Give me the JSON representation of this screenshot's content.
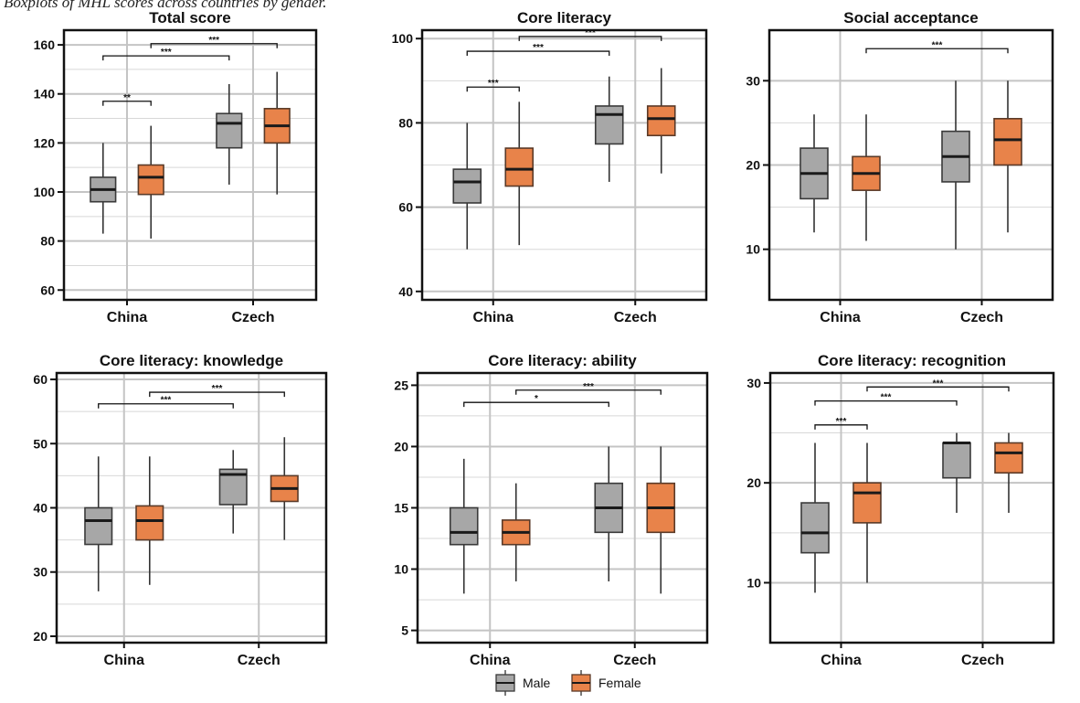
{
  "caption": "Boxplots of MHL scores across countries by gender.",
  "legend": {
    "position": "bottom-center",
    "entries": [
      {
        "name": "Male",
        "color": "#a7a7a7"
      },
      {
        "name": "Female",
        "color": "#e8834a"
      }
    ]
  },
  "chart_data": [
    {
      "type": "box",
      "title": "Total score",
      "categories": [
        "China",
        "Czech"
      ],
      "ylim": [
        56,
        166
      ],
      "yticks": [
        60,
        80,
        100,
        120,
        140,
        160
      ],
      "series": [
        {
          "name": "Male",
          "boxes": [
            {
              "min": 83,
              "q1": 96,
              "median": 101,
              "q3": 106,
              "max": 120
            },
            {
              "min": 103,
              "q1": 118,
              "median": 128,
              "q3": 132,
              "max": 144
            }
          ]
        },
        {
          "name": "Female",
          "boxes": [
            {
              "min": 81,
              "q1": 99,
              "median": 106,
              "q3": 111,
              "max": 127
            },
            {
              "min": 99,
              "q1": 120,
              "median": 127,
              "q3": 134,
              "max": 149
            }
          ]
        }
      ],
      "significance": [
        {
          "from": [
            0,
            0
          ],
          "to": [
            0,
            1
          ],
          "y": 137,
          "label": "**"
        },
        {
          "from": [
            0,
            0
          ],
          "to": [
            1,
            0
          ],
          "y": 155.5,
          "label": "***"
        },
        {
          "from": [
            0,
            1
          ],
          "to": [
            1,
            1
          ],
          "y": 160.5,
          "label": "***"
        }
      ]
    },
    {
      "type": "box",
      "title": "Core literacy",
      "categories": [
        "China",
        "Czech"
      ],
      "ylim": [
        38,
        102
      ],
      "yticks": [
        40,
        60,
        80,
        100
      ],
      "series": [
        {
          "name": "Male",
          "boxes": [
            {
              "min": 50,
              "q1": 61,
              "median": 66,
              "q3": 69,
              "max": 80
            },
            {
              "min": 66,
              "q1": 75,
              "median": 82,
              "q3": 84,
              "max": 91
            }
          ]
        },
        {
          "name": "Female",
          "boxes": [
            {
              "min": 51,
              "q1": 65,
              "median": 69,
              "q3": 74,
              "max": 85
            },
            {
              "min": 68,
              "q1": 77,
              "median": 81,
              "q3": 84,
              "max": 93
            }
          ]
        }
      ],
      "significance": [
        {
          "from": [
            0,
            0
          ],
          "to": [
            0,
            1
          ],
          "y": 88.5,
          "label": "***"
        },
        {
          "from": [
            0,
            0
          ],
          "to": [
            1,
            0
          ],
          "y": 97,
          "label": "***"
        },
        {
          "from": [
            0,
            1
          ],
          "to": [
            1,
            1
          ],
          "y": 100.5,
          "label": "***"
        }
      ]
    },
    {
      "type": "box",
      "title": "Social acceptance",
      "categories": [
        "China",
        "Czech"
      ],
      "ylim": [
        4,
        36
      ],
      "yticks": [
        10,
        20,
        30
      ],
      "series": [
        {
          "name": "Male",
          "boxes": [
            {
              "min": 12,
              "q1": 16,
              "median": 19,
              "q3": 22,
              "max": 26
            },
            {
              "min": 10,
              "q1": 18,
              "median": 21,
              "q3": 24,
              "max": 30
            }
          ]
        },
        {
          "name": "Female",
          "boxes": [
            {
              "min": 11,
              "q1": 17,
              "median": 19,
              "q3": 21,
              "max": 26
            },
            {
              "min": 12,
              "q1": 20,
              "median": 23,
              "q3": 25.5,
              "max": 30
            }
          ]
        }
      ],
      "significance": [
        {
          "from": [
            0,
            1
          ],
          "to": [
            1,
            1
          ],
          "y": 33.8,
          "label": "***"
        }
      ]
    },
    {
      "type": "box",
      "title": "Core literacy: knowledge",
      "categories": [
        "China",
        "Czech"
      ],
      "ylim": [
        19,
        61
      ],
      "yticks": [
        20,
        30,
        40,
        50,
        60
      ],
      "series": [
        {
          "name": "Male",
          "boxes": [
            {
              "min": 27,
              "q1": 34.3,
              "median": 38,
              "q3": 40,
              "max": 48
            },
            {
              "min": 36,
              "q1": 40.5,
              "median": 45.2,
              "q3": 46,
              "max": 49
            }
          ]
        },
        {
          "name": "Female",
          "boxes": [
            {
              "min": 28,
              "q1": 35,
              "median": 38,
              "q3": 40.3,
              "max": 48
            },
            {
              "min": 35,
              "q1": 41,
              "median": 43,
              "q3": 45,
              "max": 51
            }
          ]
        }
      ],
      "significance": [
        {
          "from": [
            0,
            0
          ],
          "to": [
            1,
            0
          ],
          "y": 56.2,
          "label": "***"
        },
        {
          "from": [
            0,
            1
          ],
          "to": [
            1,
            1
          ],
          "y": 58,
          "label": "***"
        }
      ]
    },
    {
      "type": "box",
      "title": "Core literacy: ability",
      "categories": [
        "China",
        "Czech"
      ],
      "ylim": [
        4,
        26
      ],
      "yticks": [
        5,
        10,
        15,
        20,
        25
      ],
      "series": [
        {
          "name": "Male",
          "boxes": [
            {
              "min": 8,
              "q1": 12,
              "median": 13,
              "q3": 15,
              "max": 19
            },
            {
              "min": 9,
              "q1": 13,
              "median": 15,
              "q3": 17,
              "max": 20
            }
          ]
        },
        {
          "name": "Female",
          "boxes": [
            {
              "min": 9,
              "q1": 12,
              "median": 13,
              "q3": 14,
              "max": 17
            },
            {
              "min": 8,
              "q1": 13,
              "median": 15,
              "q3": 17,
              "max": 20
            }
          ]
        }
      ],
      "significance": [
        {
          "from": [
            0,
            0
          ],
          "to": [
            1,
            0
          ],
          "y": 23.6,
          "label": "*"
        },
        {
          "from": [
            0,
            1
          ],
          "to": [
            1,
            1
          ],
          "y": 24.6,
          "label": "***"
        }
      ]
    },
    {
      "type": "box",
      "title": "Core literacy: recognition",
      "categories": [
        "China",
        "Czech"
      ],
      "ylim": [
        4,
        31
      ],
      "yticks": [
        10,
        20,
        30
      ],
      "series": [
        {
          "name": "Male",
          "boxes": [
            {
              "min": 9,
              "q1": 13,
              "median": 15,
              "q3": 18,
              "max": 24
            },
            {
              "min": 17,
              "q1": 20.5,
              "median": 24,
              "q3": 24,
              "max": 25
            }
          ]
        },
        {
          "name": "Female",
          "boxes": [
            {
              "min": 10,
              "q1": 16,
              "median": 19,
              "q3": 20,
              "max": 24
            },
            {
              "min": 17,
              "q1": 21,
              "median": 23,
              "q3": 24,
              "max": 25
            }
          ]
        }
      ],
      "significance": [
        {
          "from": [
            0,
            0
          ],
          "to": [
            0,
            1
          ],
          "y": 25.8,
          "label": "***"
        },
        {
          "from": [
            0,
            0
          ],
          "to": [
            1,
            0
          ],
          "y": 28.2,
          "label": "***"
        },
        {
          "from": [
            0,
            1
          ],
          "to": [
            1,
            1
          ],
          "y": 29.6,
          "label": "***"
        }
      ]
    }
  ]
}
